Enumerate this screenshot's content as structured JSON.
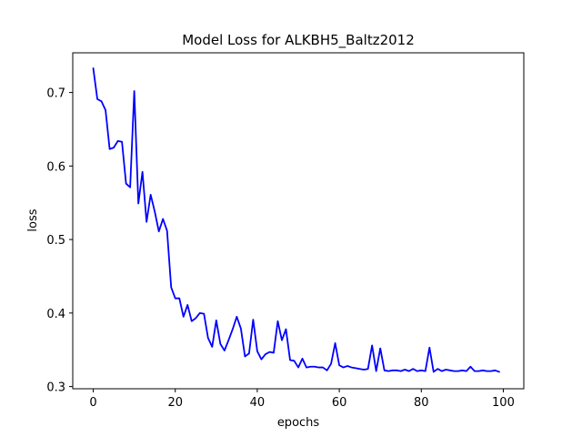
{
  "chart_data": {
    "type": "line",
    "title": "Model Loss for ALKBH5_Baltz2012",
    "xlabel": "epochs",
    "ylabel": "loss",
    "xlim": [
      -5,
      105
    ],
    "ylim": [
      0.297,
      0.754
    ],
    "xticks": [
      "0",
      "20",
      "40",
      "60",
      "80",
      "100"
    ],
    "yticks": [
      "0.3",
      "0.4",
      "0.5",
      "0.6",
      "0.7"
    ],
    "grid": false,
    "legend": "none",
    "series": [
      {
        "color": "#0000ff",
        "x": [
          0,
          1,
          2,
          3,
          4,
          5,
          6,
          7,
          8,
          9,
          10,
          11,
          12,
          13,
          14,
          15,
          16,
          17,
          18,
          19,
          20,
          21,
          22,
          23,
          24,
          25,
          26,
          27,
          28,
          29,
          30,
          31,
          32,
          33,
          34,
          35,
          36,
          37,
          38,
          39,
          40,
          41,
          42,
          43,
          44,
          45,
          46,
          47,
          48,
          49,
          50,
          51,
          52,
          53,
          54,
          55,
          56,
          57,
          58,
          59,
          60,
          61,
          62,
          63,
          64,
          65,
          66,
          67,
          68,
          69,
          70,
          71,
          72,
          73,
          74,
          75,
          76,
          77,
          78,
          79,
          80,
          81,
          82,
          83,
          84,
          85,
          86,
          87,
          88,
          89,
          90,
          91,
          92,
          93,
          94,
          95,
          96,
          97,
          98,
          99
        ],
        "y": [
          0.733,
          0.691,
          0.688,
          0.676,
          0.623,
          0.625,
          0.634,
          0.633,
          0.576,
          0.571,
          0.702,
          0.549,
          0.592,
          0.524,
          0.561,
          0.538,
          0.511,
          0.528,
          0.512,
          0.435,
          0.42,
          0.42,
          0.395,
          0.411,
          0.389,
          0.393,
          0.4,
          0.399,
          0.366,
          0.354,
          0.39,
          0.358,
          0.349,
          0.363,
          0.378,
          0.395,
          0.379,
          0.341,
          0.345,
          0.391,
          0.348,
          0.337,
          0.344,
          0.347,
          0.346,
          0.389,
          0.363,
          0.378,
          0.336,
          0.335,
          0.326,
          0.338,
          0.326,
          0.327,
          0.327,
          0.326,
          0.326,
          0.322,
          0.331,
          0.359,
          0.329,
          0.326,
          0.328,
          0.326,
          0.325,
          0.324,
          0.323,
          0.324,
          0.356,
          0.321,
          0.352,
          0.322,
          0.321,
          0.322,
          0.322,
          0.321,
          0.323,
          0.321,
          0.324,
          0.321,
          0.322,
          0.321,
          0.353,
          0.32,
          0.324,
          0.321,
          0.323,
          0.322,
          0.321,
          0.321,
          0.322,
          0.321,
          0.327,
          0.321,
          0.321,
          0.322,
          0.321,
          0.321,
          0.322,
          0.32
        ]
      }
    ]
  }
}
